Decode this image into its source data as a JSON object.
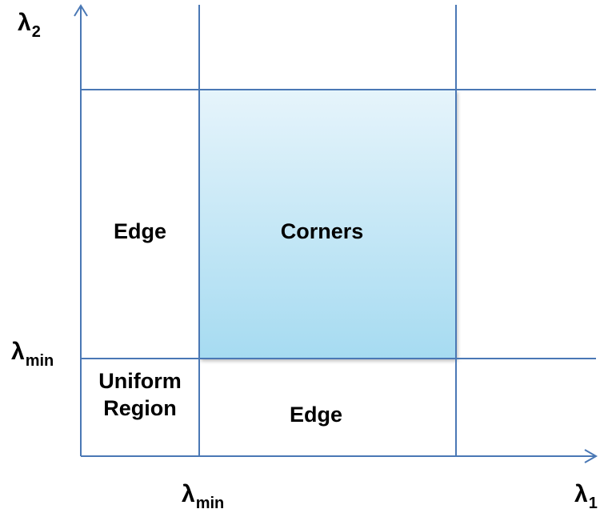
{
  "axes": {
    "y": {
      "symbol": "λ",
      "subscript": "2"
    },
    "x": {
      "symbol": "λ",
      "subscript": "1"
    },
    "y_threshold": {
      "symbol": "λ",
      "subscript": "min"
    },
    "x_threshold": {
      "symbol": "λ",
      "subscript": "min"
    }
  },
  "regions": {
    "edge_left": "Edge",
    "corners": "Corners",
    "uniform_line1": "Uniform",
    "uniform_line2": "Region",
    "edge_bottom": "Edge"
  },
  "colors": {
    "grid_line": "#4a78b5",
    "corners_fill_top": "#e6f4fb",
    "corners_fill_bottom": "#a6dbf1",
    "text": "#000000"
  }
}
